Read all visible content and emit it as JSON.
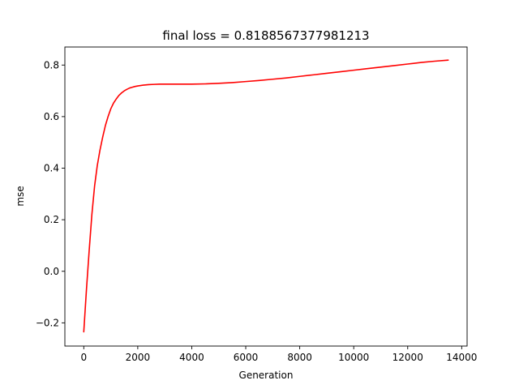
{
  "chart_data": {
    "type": "line",
    "title": "final loss = 0.8188567377981213",
    "xlabel": "Generation",
    "ylabel": "mse",
    "xlim": [
      -700,
      14200
    ],
    "ylim": [
      -0.29,
      0.87
    ],
    "grid": false,
    "x_ticks": [
      0,
      2000,
      4000,
      6000,
      8000,
      10000,
      12000,
      14000
    ],
    "x_tick_labels": [
      "0",
      "2000",
      "4000",
      "6000",
      "8000",
      "10000",
      "12000",
      "14000"
    ],
    "y_ticks": [
      -0.2,
      0.0,
      0.2,
      0.4,
      0.6,
      0.8
    ],
    "y_tick_labels": [
      "−0.2",
      "0.0",
      "0.2",
      "0.4",
      "0.6",
      "0.8"
    ],
    "series": [
      {
        "color": "#ff0000",
        "x": [
          0,
          100,
          200,
          300,
          400,
          500,
          600,
          700,
          800,
          900,
          1000,
          1100,
          1200,
          1300,
          1400,
          1500,
          1600,
          1700,
          1800,
          1900,
          2000,
          2200,
          2400,
          2600,
          2800,
          3000,
          3500,
          4000,
          4500,
          5000,
          5500,
          6000,
          6500,
          7000,
          7500,
          8000,
          8500,
          9000,
          9500,
          10000,
          10500,
          11000,
          11500,
          12000,
          12500,
          13000,
          13500
        ],
        "y": [
          -0.235,
          -0.07,
          0.08,
          0.22,
          0.33,
          0.41,
          0.47,
          0.52,
          0.565,
          0.6,
          0.63,
          0.652,
          0.668,
          0.682,
          0.692,
          0.7,
          0.706,
          0.711,
          0.714,
          0.717,
          0.719,
          0.722,
          0.724,
          0.725,
          0.726,
          0.726,
          0.726,
          0.726,
          0.727,
          0.729,
          0.732,
          0.736,
          0.74,
          0.745,
          0.75,
          0.756,
          0.762,
          0.768,
          0.774,
          0.78,
          0.786,
          0.792,
          0.798,
          0.804,
          0.81,
          0.815,
          0.819
        ]
      }
    ]
  }
}
